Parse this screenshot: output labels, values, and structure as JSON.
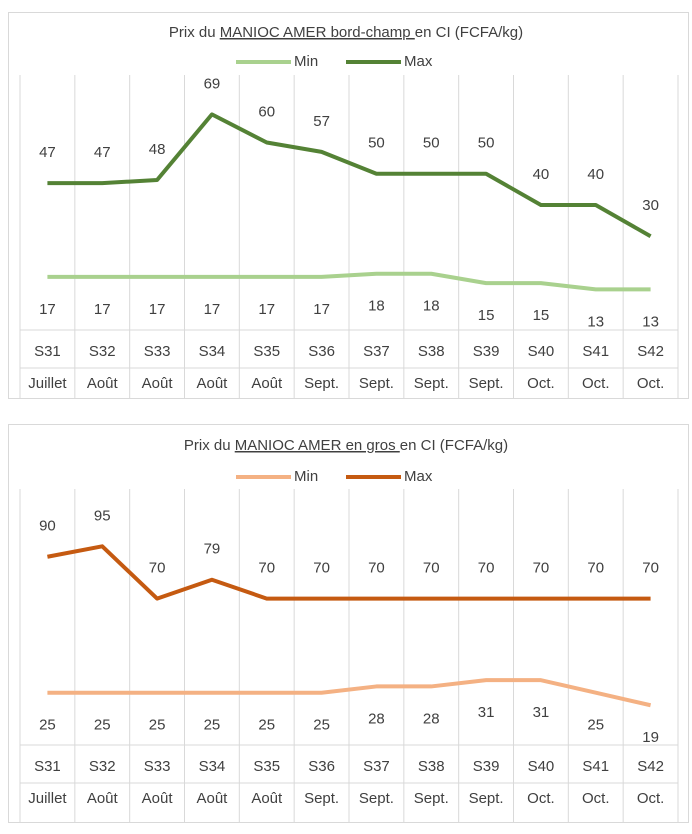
{
  "chart_data": [
    {
      "type": "line",
      "title_parts": [
        "Prix du ",
        "MANIOC AMER bord-champ ",
        "en CI (FCFA/kg)"
      ],
      "categories": [
        "S31",
        "S32",
        "S33",
        "S34",
        "S35",
        "S36",
        "S37",
        "S38",
        "S39",
        "S40",
        "S41",
        "S42"
      ],
      "months": [
        "Juillet",
        "Août",
        "Août",
        "Août",
        "Août",
        "Sept.",
        "Sept.",
        "Sept.",
        "Sept.",
        "Oct.",
        "Oct.",
        "Oct."
      ],
      "series": [
        {
          "name": "Min",
          "color": "#a9d18e",
          "values": [
            17,
            17,
            17,
            17,
            17,
            17,
            18,
            18,
            15,
            15,
            13,
            13
          ]
        },
        {
          "name": "Max",
          "color": "#548235",
          "values": [
            47,
            47,
            48,
            69,
            60,
            57,
            50,
            50,
            50,
            40,
            40,
            30
          ]
        }
      ],
      "ylim": [
        0,
        80
      ],
      "legend": "top"
    },
    {
      "type": "line",
      "title_parts": [
        "Prix du ",
        "MANIOC AMER en gros ",
        "en CI (FCFA/kg)"
      ],
      "categories": [
        "S31",
        "S32",
        "S33",
        "S34",
        "S35",
        "S36",
        "S37",
        "S38",
        "S39",
        "S40",
        "S41",
        "S42"
      ],
      "months": [
        "Juillet",
        "Août",
        "Août",
        "Août",
        "Août",
        "Sept.",
        "Sept.",
        "Sept.",
        "Sept.",
        "Oct.",
        "Oct.",
        "Oct."
      ],
      "series": [
        {
          "name": "Min",
          "color": "#f4b183",
          "values": [
            25,
            25,
            25,
            25,
            25,
            25,
            28,
            28,
            31,
            31,
            25,
            19
          ]
        },
        {
          "name": "Max",
          "color": "#c55a11",
          "values": [
            90,
            95,
            70,
            79,
            70,
            70,
            70,
            70,
            70,
            70,
            70,
            70
          ]
        }
      ],
      "ylim": [
        0,
        120
      ],
      "legend": "top"
    }
  ]
}
